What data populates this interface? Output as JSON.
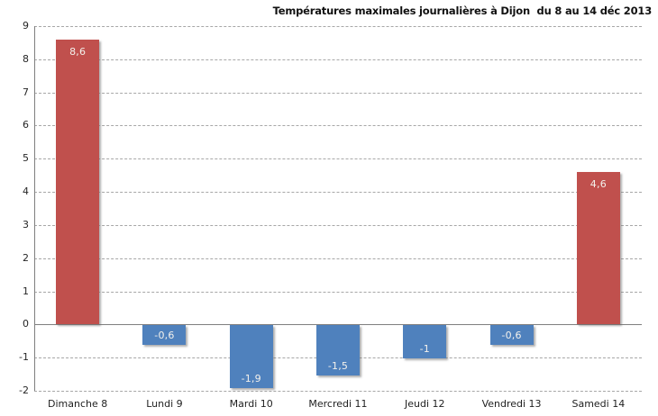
{
  "chart_data": {
    "type": "bar",
    "title": "Températures maximales journalières à Dijon  du 8 au 14 déc 2013",
    "categories": [
      "Dimanche 8",
      "Lundi 9",
      "Mardi 10",
      "Mercredi 11",
      "Jeudi 12",
      "Vendredi 13",
      "Samedi 14"
    ],
    "values": [
      8.6,
      -0.6,
      -1.9,
      -1.5,
      -1,
      -0.6,
      4.6
    ],
    "value_labels": [
      "8,6",
      "-0,6",
      "-1,9",
      "-1,5",
      "-1",
      "-0,6",
      "4,6"
    ],
    "bar_colors": [
      "#C0504D",
      "#4F81BD",
      "#4F81BD",
      "#4F81BD",
      "#4F81BD",
      "#4F81BD",
      "#C0504D"
    ],
    "colors": {
      "positive_red": "#C0504D",
      "negative_blue": "#4F81BD",
      "axis": "#7F7F7F",
      "gridline": "#A7A7A7",
      "label_text": "#F3F1EC"
    },
    "xlabel": "",
    "ylabel": "",
    "ylim": [
      -2,
      9
    ],
    "ytick_step": 1,
    "grid": "horizontal-dashed",
    "legend": "none"
  }
}
